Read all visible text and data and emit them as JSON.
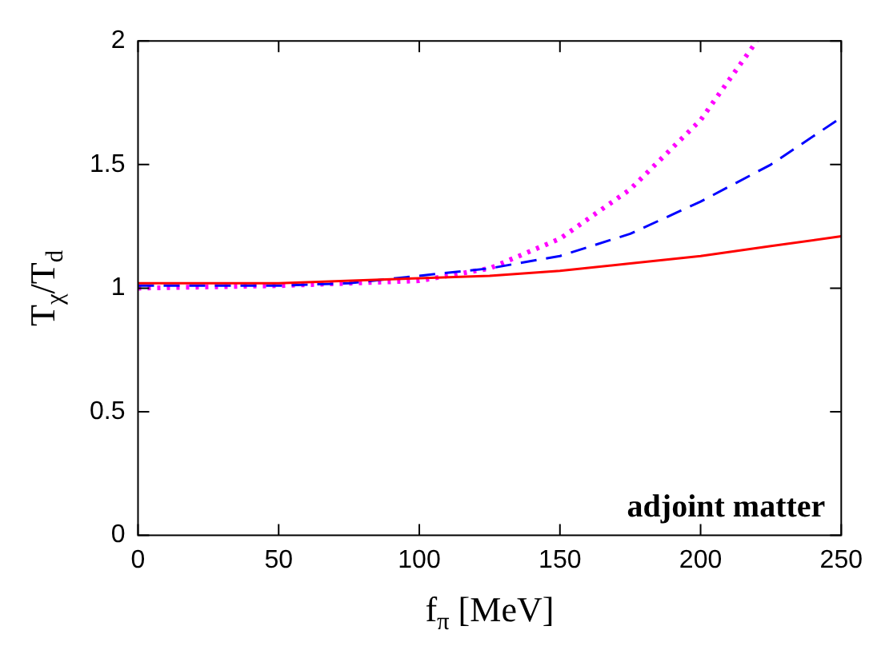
{
  "chart_data": {
    "type": "line",
    "xlabel": "f$_{π}$ [MeV]",
    "ylabel": "T$_{χ}$/T$_{d}$",
    "annotations": [
      "adjoint matter"
    ],
    "xlim": [
      0,
      250
    ],
    "ylim": [
      0,
      2
    ],
    "xticks": [
      0,
      50,
      100,
      150,
      200,
      250
    ],
    "yticks": [
      0,
      0.5,
      1,
      1.5,
      2
    ],
    "grid": false,
    "legend": false,
    "marker": "none",
    "series": [
      {
        "color": "#ff0000",
        "line_style": "solid",
        "x": [
          0,
          50,
          100,
          125,
          150,
          175,
          200,
          225,
          250
        ],
        "values": [
          1.02,
          1.02,
          1.04,
          1.05,
          1.07,
          1.1,
          1.13,
          1.17,
          1.21
        ]
      },
      {
        "color": "#0000ff",
        "line_style": "dashed",
        "x": [
          0,
          50,
          75,
          100,
          125,
          150,
          175,
          200,
          225,
          250
        ],
        "values": [
          1.01,
          1.01,
          1.02,
          1.05,
          1.08,
          1.13,
          1.22,
          1.35,
          1.5,
          1.69
        ]
      },
      {
        "color": "#ff00ff",
        "line_style": "dotted",
        "x": [
          0,
          50,
          75,
          100,
          125,
          150,
          175,
          200,
          220
        ],
        "values": [
          1.0,
          1.01,
          1.02,
          1.03,
          1.08,
          1.2,
          1.4,
          1.68,
          2.0
        ]
      }
    ]
  }
}
